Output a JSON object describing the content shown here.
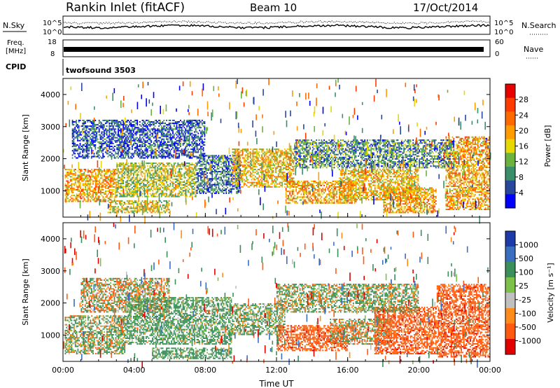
{
  "header": {
    "station": "Rankin Inlet (fitACF)",
    "beam": "Beam 10",
    "date": "17/Oct/2014"
  },
  "top_panels": {
    "nsky_label": "N.Sky",
    "nsearch_label": "N.Search",
    "nsky_ticks": [
      "10^5",
      "10^0"
    ],
    "nsearch_ticks": [
      "10^5",
      "10^0"
    ],
    "freq_label_1": "Freq.",
    "freq_label_2": "[MHz]",
    "freq_ticks": [
      "18",
      "8"
    ],
    "nave_label": "Nave",
    "nave_ticks": [
      "60",
      "0"
    ],
    "cpid_label": "CPID",
    "cpid_value": "twofsound 3503"
  },
  "colors": {
    "power": [
      "#0000ff",
      "#28489c",
      "#3a8f6a",
      "#6bb23e",
      "#e6d800",
      "#ff9d00",
      "#ff6a00",
      "#ff3b00",
      "#e60000"
    ],
    "velocity": [
      "#1c3aa8",
      "#3a6fc0",
      "#3a8f5a",
      "#7cc24a",
      "#c0c0c0",
      "#ff8c1a",
      "#ff5a10",
      "#e00000"
    ]
  },
  "power_colorbar": {
    "label": "Power [dB]",
    "ticks": [
      "28",
      "24",
      "20",
      "16",
      "12",
      "8",
      "4"
    ]
  },
  "velocity_colorbar": {
    "label": "Velocity [m s⁻¹]",
    "ticks": [
      "1000",
      "500",
      "100",
      "25",
      "-25",
      "-100",
      "-500",
      "-1000"
    ]
  },
  "chart_data": [
    {
      "type": "heatmap",
      "title": "Power",
      "ylabel": "Slant Range [km]",
      "xlabel": "Time UT",
      "x_ticks": [
        "00:00",
        "04:00",
        "08:00",
        "12:00",
        "16:00",
        "20:00",
        "00:00"
      ],
      "y_ticks": [
        1000,
        2000,
        3000,
        4000
      ],
      "ylim": [
        180,
        4500
      ],
      "xlim_hours": [
        0,
        24
      ],
      "colorbar_ticks": [
        4,
        8,
        12,
        16,
        20,
        24,
        28
      ],
      "regions": [
        {
          "t0": 0.1,
          "t1": 3.0,
          "r0": 650,
          "r1": 1700,
          "v": 28
        },
        {
          "t0": 2.5,
          "t1": 6.0,
          "r0": 300,
          "r1": 700,
          "v": 24
        },
        {
          "t0": 3.0,
          "t1": 7.5,
          "r0": 800,
          "r1": 1900,
          "v": 22
        },
        {
          "t0": 7.5,
          "t1": 10.0,
          "r0": 900,
          "r1": 2100,
          "v": 14
        },
        {
          "t0": 9.5,
          "t1": 13.0,
          "r0": 1100,
          "r1": 2300,
          "v": 26
        },
        {
          "t0": 12.5,
          "t1": 16.5,
          "r0": 600,
          "r1": 1300,
          "v": 28
        },
        {
          "t0": 15.5,
          "t1": 20.0,
          "r0": 700,
          "r1": 1700,
          "v": 26
        },
        {
          "t0": 18.0,
          "t1": 21.0,
          "r0": 300,
          "r1": 1100,
          "v": 28
        },
        {
          "t0": 21.5,
          "t1": 24.0,
          "r0": 400,
          "r1": 2700,
          "v": 28
        },
        {
          "t0": 0.5,
          "t1": 8.0,
          "r0": 2000,
          "r1": 3200,
          "v": 12
        },
        {
          "t0": 13.0,
          "t1": 22.0,
          "r0": 1700,
          "r1": 2600,
          "v": 16
        }
      ]
    },
    {
      "type": "heatmap",
      "title": "Velocity",
      "ylabel": "Slant Range [km]",
      "xlabel": "Time UT",
      "x_ticks": [
        "00:00",
        "04:00",
        "08:00",
        "12:00",
        "16:00",
        "20:00",
        "00:00"
      ],
      "y_ticks": [
        1000,
        2000,
        3000,
        4000
      ],
      "ylim": [
        180,
        4500
      ],
      "xlim_hours": [
        0,
        24
      ],
      "colorbar_ticks": [
        -1000,
        -500,
        -100,
        -25,
        25,
        100,
        500,
        1000
      ],
      "regions": [
        {
          "t0": 0.1,
          "t1": 3.5,
          "r0": 400,
          "r1": 1600,
          "v": 100
        },
        {
          "t0": 1.0,
          "t1": 6.0,
          "r0": 1700,
          "r1": 2800,
          "v": 0
        },
        {
          "t0": 3.5,
          "t1": 9.5,
          "r0": 700,
          "r1": 2200,
          "v": 200
        },
        {
          "t0": 5.0,
          "t1": 9.5,
          "r0": 250,
          "r1": 600,
          "v": 200
        },
        {
          "t0": 9.5,
          "t1": 12.5,
          "r0": 1000,
          "r1": 2000,
          "v": 150
        },
        {
          "t0": 12.0,
          "t1": 16.0,
          "r0": 500,
          "r1": 1300,
          "v": -300
        },
        {
          "t0": 15.0,
          "t1": 18.5,
          "r0": 700,
          "r1": 1500,
          "v": 0
        },
        {
          "t0": 17.5,
          "t1": 21.0,
          "r0": 400,
          "r1": 1900,
          "v": -300
        },
        {
          "t0": 21.0,
          "t1": 24.0,
          "r0": 300,
          "r1": 2600,
          "v": -300
        },
        {
          "t0": 12.0,
          "t1": 20.0,
          "r0": 1700,
          "r1": 2600,
          "v": 100
        }
      ]
    }
  ]
}
